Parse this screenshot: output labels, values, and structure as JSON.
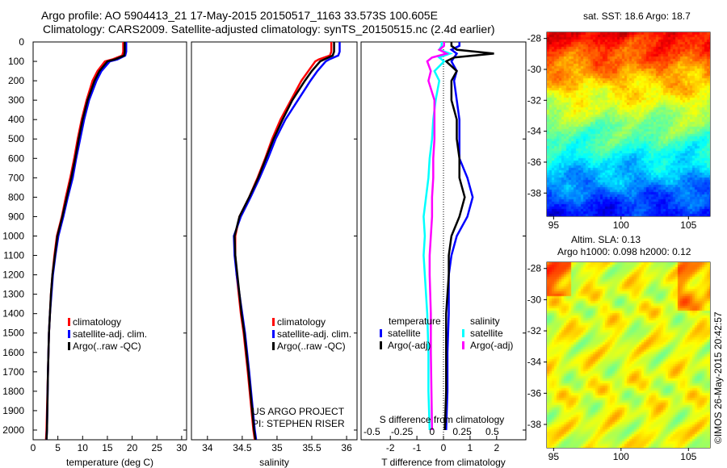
{
  "title_line1": "Argo profile: AO 5904413_21 17-May-2015 20150517_1163 33.573S 100.605E",
  "title_line2": "Climatology: CARS2009. Satellite-adjusted climatology: synTS_20150515.nc (2.4d earlier)",
  "credit": "©IMOS 26-May-2015 20:42:57",
  "project_line1": "US ARGO PROJECT",
  "project_line2": "PI: STEPHEN RISER",
  "colors": {
    "climatology": "#ff0000",
    "satellite": "#0000ff",
    "argo": "#000000",
    "sal_satellite": "#00ffff",
    "sal_argo": "#ff00ff"
  },
  "chart_data": [
    {
      "type": "line",
      "id": "temperature",
      "xlabel": "temperature (deg C)",
      "ylabel": "depth",
      "xticks": [
        0,
        5,
        10,
        15,
        20,
        25,
        30
      ],
      "xlim": [
        0,
        31
      ],
      "yticks": [
        0,
        100,
        200,
        300,
        400,
        500,
        600,
        700,
        800,
        900,
        1000,
        1100,
        1200,
        1300,
        1400,
        1500,
        1600,
        1700,
        1800,
        1900,
        2000
      ],
      "ylim": [
        0,
        2050
      ],
      "legend": [
        "climatology",
        "satellite-adj. clim.",
        "Argo(..raw -QC)"
      ],
      "depth": [
        0,
        50,
        70,
        90,
        100,
        150,
        200,
        300,
        400,
        500,
        600,
        700,
        800,
        900,
        1000,
        1100,
        1200,
        1300,
        1400,
        1500,
        1700,
        2000,
        2050
      ],
      "series": [
        {
          "name": "climatology",
          "color": "#ff0000",
          "values": [
            18.2,
            18.2,
            18.0,
            16.0,
            14.5,
            13.0,
            12.0,
            10.8,
            9.8,
            9.0,
            8.3,
            7.5,
            6.6,
            5.8,
            4.8,
            4.3,
            3.9,
            3.6,
            3.4,
            3.2,
            3.0,
            2.7,
            2.6
          ]
        },
        {
          "name": "satellite-adj. clim.",
          "color": "#0000ff",
          "values": [
            18.8,
            18.8,
            18.6,
            17.0,
            15.5,
            13.8,
            12.8,
            11.3,
            10.3,
            9.5,
            8.7,
            8.0,
            7.0,
            6.1,
            5.1,
            4.5,
            4.0,
            3.7,
            3.4,
            3.2,
            3.0,
            2.8,
            2.7
          ]
        },
        {
          "name": "Argo(..raw -QC)",
          "color": "#000000",
          "values": [
            18.5,
            18.5,
            18.4,
            16.5,
            15.0,
            13.4,
            12.4,
            11.0,
            10.0,
            9.2,
            8.5,
            7.7,
            6.8,
            5.9,
            4.9,
            4.4,
            3.9,
            3.6,
            3.4,
            3.2,
            3.0,
            2.8,
            2.7
          ]
        }
      ]
    },
    {
      "type": "line",
      "id": "salinity",
      "xlabel": "salinity",
      "xticks": [
        34,
        34.5,
        35,
        35.5,
        36
      ],
      "xlim": [
        33.77,
        36.15
      ],
      "ylim": [
        0,
        2050
      ],
      "legend": [
        "climatology",
        "satellite-adj. clim.",
        "Argo(..raw -QC)"
      ],
      "depth": [
        0,
        50,
        70,
        90,
        100,
        150,
        200,
        300,
        400,
        500,
        600,
        700,
        800,
        900,
        1000,
        1100,
        1200,
        1300,
        1400,
        1500,
        1700,
        2000,
        2050
      ],
      "series": [
        {
          "name": "climatology",
          "color": "#ff0000",
          "values": [
            35.78,
            35.78,
            35.76,
            35.6,
            35.55,
            35.45,
            35.35,
            35.2,
            35.05,
            34.93,
            34.83,
            34.72,
            34.6,
            34.46,
            34.4,
            34.4,
            34.42,
            34.45,
            34.48,
            34.52,
            34.58,
            34.66,
            34.68
          ]
        },
        {
          "name": "satellite-adj. clim.",
          "color": "#0000ff",
          "values": [
            35.9,
            35.9,
            35.88,
            35.75,
            35.7,
            35.58,
            35.48,
            35.3,
            35.12,
            34.98,
            34.87,
            34.75,
            34.62,
            34.48,
            34.38,
            34.39,
            34.42,
            34.46,
            34.5,
            34.54,
            34.6,
            34.68,
            34.7
          ]
        },
        {
          "name": "Argo(..raw -QC)",
          "color": "#000000",
          "values": [
            35.82,
            35.82,
            35.8,
            35.68,
            35.62,
            35.5,
            35.4,
            35.22,
            35.08,
            34.95,
            34.84,
            34.73,
            34.6,
            34.46,
            34.39,
            34.4,
            34.43,
            34.46,
            34.49,
            34.53,
            34.59,
            34.67,
            34.69
          ]
        }
      ]
    },
    {
      "type": "line",
      "id": "differences",
      "xlabel": "T difference from climatology",
      "x2label": "S difference from climatology",
      "xticks": [
        -2,
        -1,
        0,
        1,
        2
      ],
      "xlim": [
        -3.1,
        3.1
      ],
      "x2ticks": [
        -0.5,
        -0.25,
        0,
        0.25,
        0.5
      ],
      "x2tick_labels": [
        "-0.5",
        "-0.25",
        "0",
        "0.25",
        "0.5"
      ],
      "x2lim": [
        -0.59,
        0.78
      ],
      "legend_temperature_title": "temperature",
      "legend_salinity_title": "salinity",
      "legend": [
        "satellite",
        "Argo(-adj)",
        "satellite",
        "Argo(-adj)"
      ],
      "depth": [
        0,
        20,
        40,
        60,
        80,
        100,
        150,
        200,
        300,
        400,
        500,
        600,
        700,
        800,
        900,
        1000,
        1100,
        1200,
        1400,
        1600,
        1800,
        2000
      ],
      "series": [
        {
          "name": "T satellite",
          "color": "#0000ff",
          "values": [
            0.6,
            0.6,
            0.3,
            0.5,
            0.4,
            0.3,
            0.5,
            0.4,
            0.5,
            0.6,
            0.6,
            0.6,
            0.9,
            1.1,
            0.9,
            0.5,
            0.3,
            0.2,
            0.2,
            0.15,
            0.15,
            0.1
          ]
        },
        {
          "name": "T Argo(-adj)",
          "color": "#000000",
          "values": [
            0.3,
            0.3,
            0.5,
            1.9,
            0.4,
            0.1,
            0.5,
            0.3,
            0.3,
            0.5,
            0.5,
            0.6,
            0.6,
            0.8,
            0.6,
            0.3,
            0.2,
            0.2,
            0.1,
            0.1,
            0.1,
            0.05
          ]
        },
        {
          "name": "S satellite",
          "color": "#00ffff",
          "values": [
            0.08,
            0.08,
            0.06,
            0.15,
            0.06,
            0.1,
            0.02,
            0.06,
            0.03,
            0.01,
            0.0,
            -0.02,
            -0.03,
            -0.05,
            -0.07,
            -0.06,
            -0.07,
            -0.06,
            -0.04,
            -0.03,
            -0.03,
            -0.02
          ]
        },
        {
          "name": "S Argo(-adj)",
          "color": "#ff00ff",
          "values": [
            0.1,
            0.1,
            0.06,
            0.12,
            0.0,
            -0.04,
            -0.01,
            -0.03,
            0.02,
            0.02,
            0.02,
            0.01,
            0.01,
            0.0,
            0.0,
            -0.01,
            -0.02,
            -0.02,
            -0.01,
            -0.01,
            -0.005,
            0.0
          ]
        }
      ]
    },
    {
      "type": "heatmap",
      "id": "sst-map",
      "title": "sat. SST: 18.6 Argo: 18.7",
      "xticks": [
        95,
        100,
        105
      ],
      "yticks": [
        -28,
        -30,
        -32,
        -34,
        -36,
        -38
      ],
      "xlim": [
        94.5,
        106.6
      ],
      "ylim": [
        -39.5,
        -27.6
      ]
    },
    {
      "type": "heatmap",
      "id": "sla-map",
      "title1": "Altim. SLA: 0.13",
      "title2": "Argo h1000: 0.098 h2000: 0.12",
      "xticks": [
        95,
        100,
        105
      ],
      "yticks": [
        -28,
        -30,
        -32,
        -34,
        -36,
        -38
      ],
      "xlim": [
        94.5,
        106.6
      ],
      "ylim": [
        -39.5,
        -27.6
      ]
    }
  ]
}
